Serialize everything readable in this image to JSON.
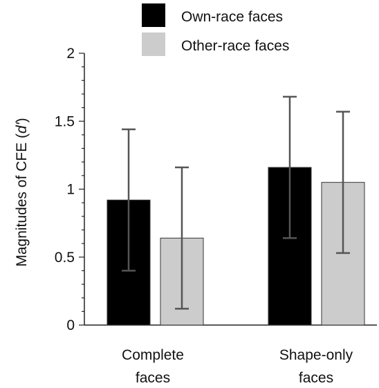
{
  "chart_data": {
    "type": "bar",
    "title": "",
    "xlabel": "",
    "ylabel": "Magnitudes of CFE (",
    "ylabel_italic": "d'",
    "ylabel_suffix": ")",
    "ylim": [
      0,
      2
    ],
    "yticks": [
      0,
      0.5,
      1,
      1.5,
      2
    ],
    "ytick_labels": [
      "0",
      "0.5",
      "1",
      "1.5",
      "2"
    ],
    "minor_ticks_per_major": 5,
    "grid": false,
    "legend_position": "top",
    "categories": [
      {
        "lines": [
          "Complete",
          "faces"
        ]
      },
      {
        "lines": [
          "Shape-only",
          "faces"
        ]
      }
    ],
    "series": [
      {
        "name": "Own-race faces",
        "color": "#000000",
        "values": [
          0.92,
          1.16
        ],
        "error": [
          0.52,
          0.52
        ]
      },
      {
        "name": "Other-race faces",
        "color": "#cccccc",
        "values": [
          0.64,
          1.05
        ],
        "error": [
          0.52,
          0.52
        ]
      }
    ],
    "errorbar_color": "#555555"
  }
}
